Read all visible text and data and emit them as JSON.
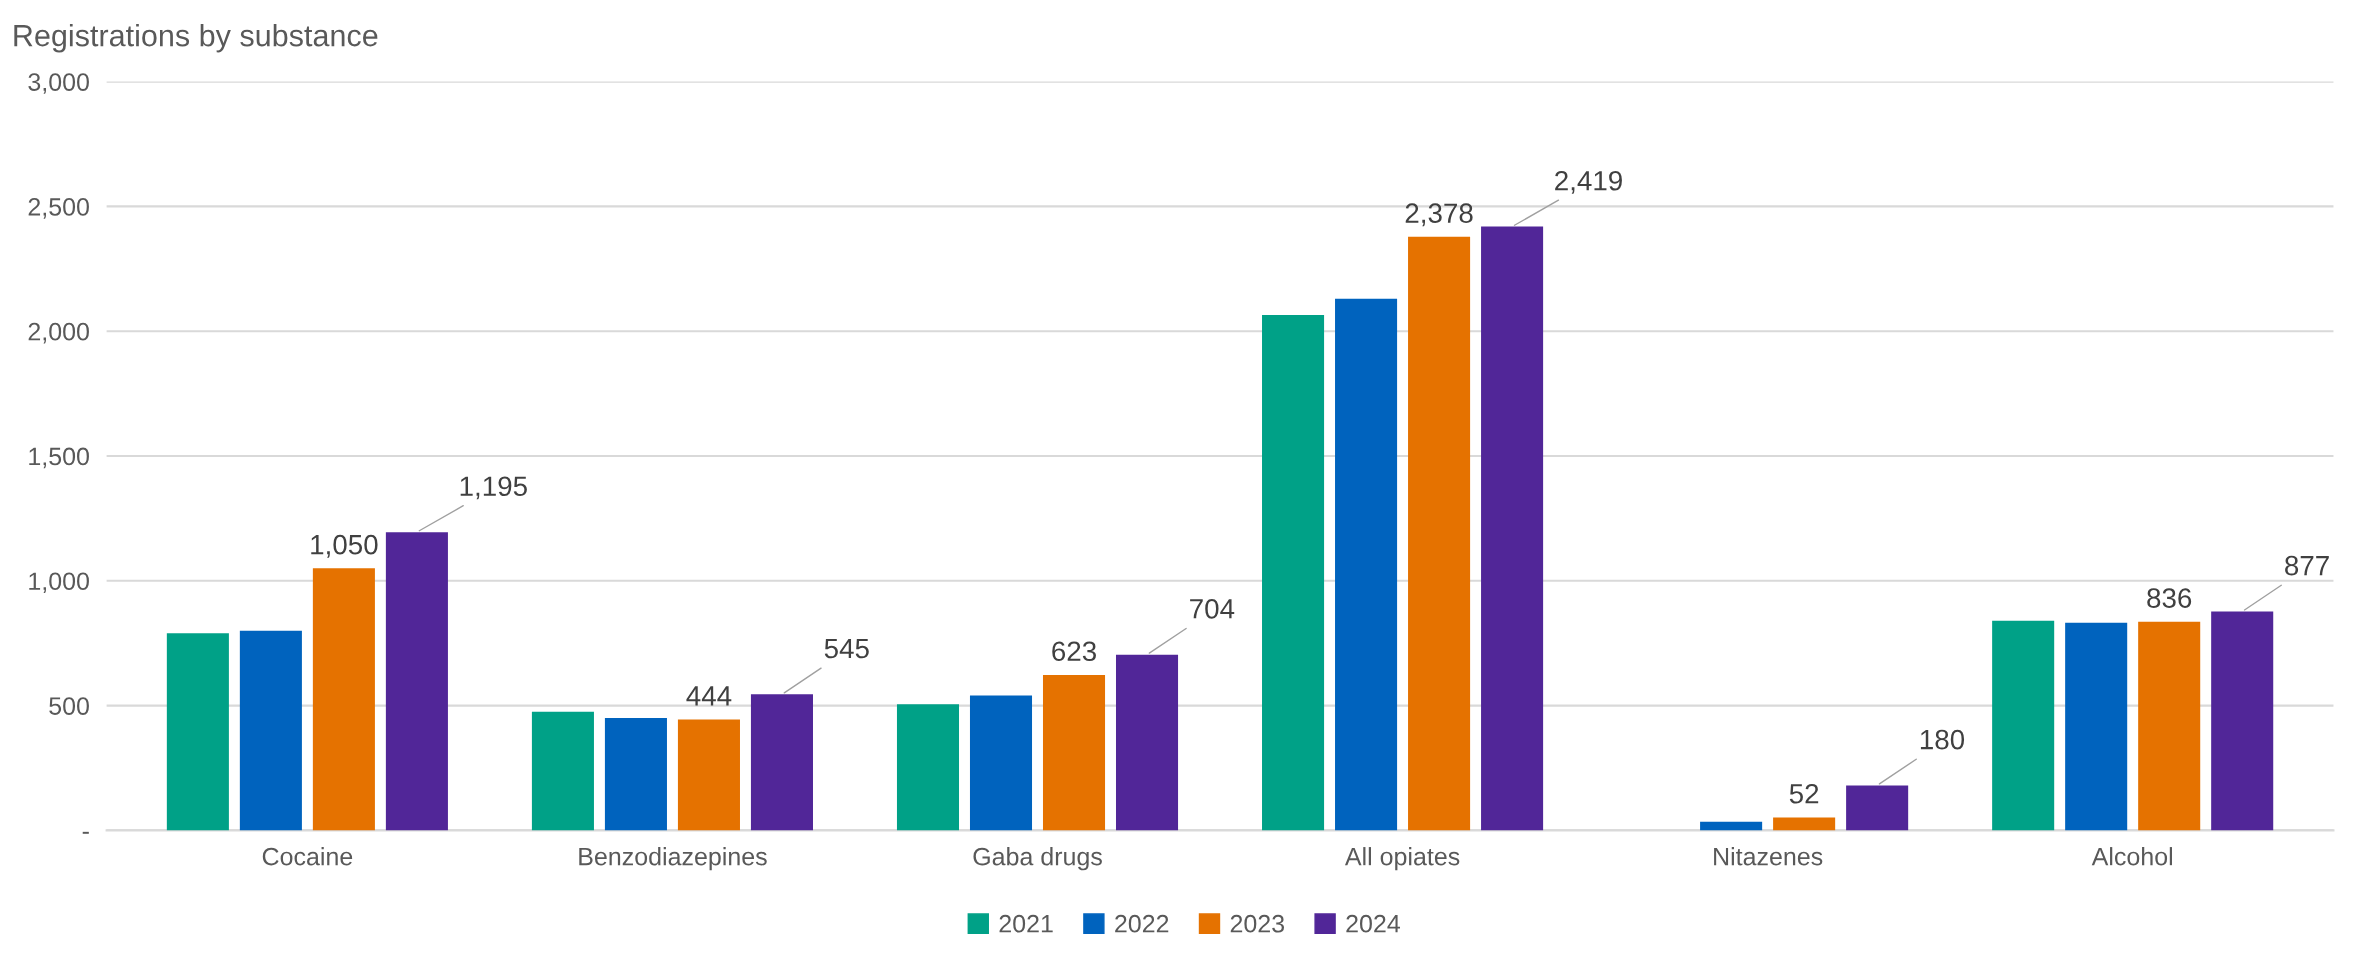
{
  "chart_data": {
    "type": "bar",
    "title": "Registrations by substance",
    "categories": [
      "Cocaine",
      "Benzodiazepines",
      "Gaba drugs",
      "All opiates",
      "Nitazenes",
      "Alcohol"
    ],
    "series": [
      {
        "name": "2021",
        "color": "#00a187",
        "values": [
          790,
          475,
          505,
          2065,
          null,
          840
        ]
      },
      {
        "name": "2022",
        "color": "#0063be",
        "values": [
          800,
          450,
          540,
          2130,
          35,
          832
        ]
      },
      {
        "name": "2023",
        "color": "#e57200",
        "values": [
          1050,
          444,
          623,
          2378,
          52,
          836
        ],
        "value_labels": [
          "1,050",
          "444",
          "623",
          "2,378",
          "52",
          "836"
        ]
      },
      {
        "name": "2024",
        "color": "#512698",
        "values": [
          1195,
          545,
          704,
          2419,
          180,
          877
        ],
        "value_labels": [
          "1,195",
          "545",
          "704",
          "2,419",
          "180",
          "877"
        ]
      }
    ],
    "ylim": [
      0,
      3000
    ],
    "yticks": [
      {
        "value": 0,
        "label": "-"
      },
      {
        "value": 500,
        "label": "500"
      },
      {
        "value": 1000,
        "label": "1,000"
      },
      {
        "value": 1500,
        "label": "1,500"
      },
      {
        "value": 2000,
        "label": "2,000"
      },
      {
        "value": 2500,
        "label": "2,500"
      },
      {
        "value": 3000,
        "label": "3,000"
      }
    ],
    "grid": "y",
    "legend": "bottom"
  }
}
